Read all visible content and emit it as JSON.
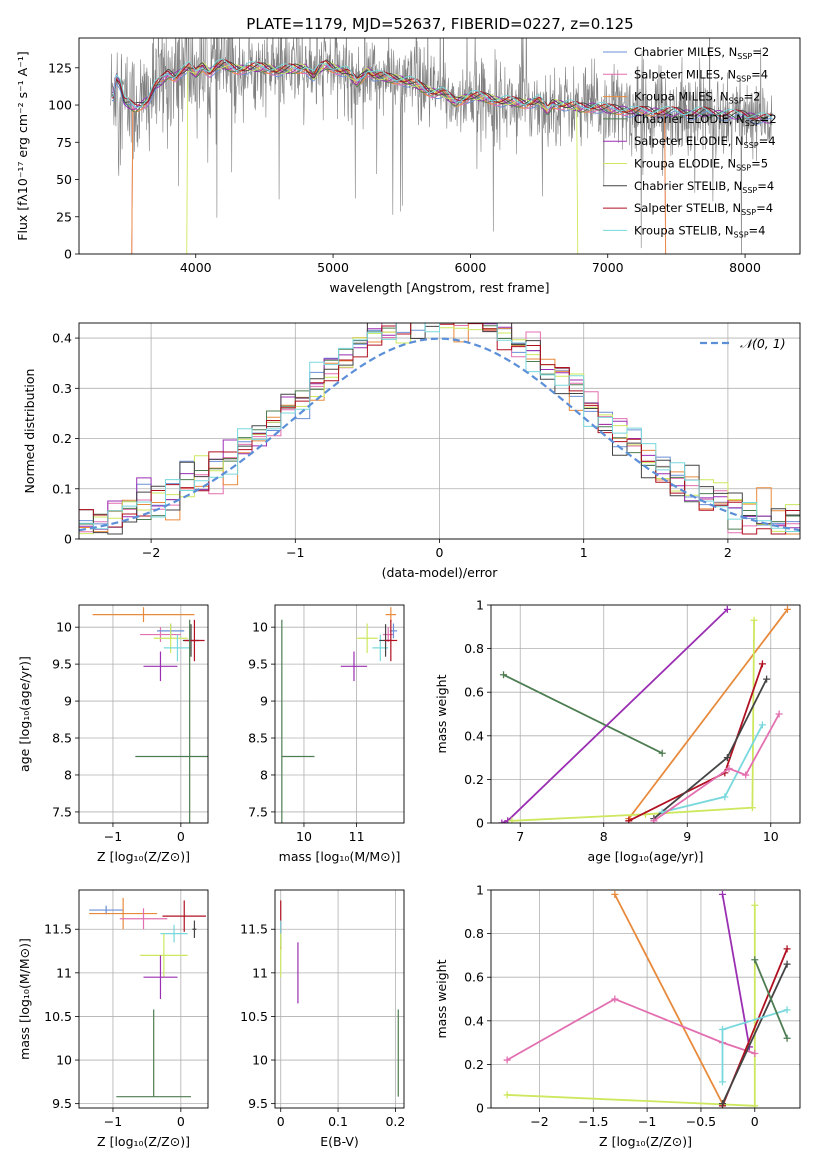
{
  "figure_title": "PLATE=1179, MJD=52637, FIBERID=0227, z=0.125",
  "series_colors": {
    "chabrier_miles": "#6a8fd6",
    "salpeter_miles": "#e36fb0",
    "kroupa_miles": "#e88a3c",
    "chabrier_elodie": "#4e7d52",
    "salpeter_elodie": "#9b2fb3",
    "kroupa_elodie": "#cde85e",
    "chabrier_stelib": "#444444",
    "salpeter_stelib": "#b01020",
    "kroupa_stelib": "#78d8dc",
    "data": "#808080",
    "normal": "#5b8fd8"
  },
  "chart_data": [
    {
      "id": "spectrum",
      "type": "line",
      "xlabel": "wavelength [Angstrom, rest frame]",
      "ylabel": "Flux [fλ10⁻¹⁷ erg cm⁻² s⁻¹ A⁻¹]",
      "xlim": [
        3150,
        8400
      ],
      "ylim": [
        0,
        145
      ],
      "xticks": [
        4000,
        5000,
        6000,
        7000,
        8000
      ],
      "yticks": [
        0,
        25,
        50,
        75,
        100,
        125
      ],
      "grid": false,
      "legend_position": "top-right",
      "legend": [
        {
          "label": "Chabrier MILES, N",
          "sub": "SSP",
          "tail": "=2",
          "color_key": "chabrier_miles"
        },
        {
          "label": "Salpeter MILES, N",
          "sub": "SSP",
          "tail": "=4",
          "color_key": "salpeter_miles"
        },
        {
          "label": "Kroupa MILES, N",
          "sub": "SSP",
          "tail": "=2",
          "color_key": "kroupa_miles"
        },
        {
          "label": "Chabrier ELODIE, N",
          "sub": "SSP",
          "tail": "=2",
          "color_key": "chabrier_elodie"
        },
        {
          "label": "Salpeter ELODIE, N",
          "sub": "SSP",
          "tail": "=4",
          "color_key": "salpeter_elodie"
        },
        {
          "label": "Kroupa ELODIE, N",
          "sub": "SSP",
          "tail": "=5",
          "color_key": "kroupa_elodie"
        },
        {
          "label": "Chabrier STELIB, N",
          "sub": "SSP",
          "tail": "=4",
          "color_key": "chabrier_stelib"
        },
        {
          "label": "Salpeter STELIB, N",
          "sub": "SSP",
          "tail": "=4",
          "color_key": "salpeter_stelib"
        },
        {
          "label": "Kroupa STELIB, N",
          "sub": "SSP",
          "tail": "=4",
          "color_key": "kroupa_stelib"
        }
      ],
      "model_continuum": {
        "x": [
          3400,
          3420,
          3450,
          3480,
          3520,
          3560,
          3600,
          3650,
          3700,
          3750,
          3800,
          3850,
          3900,
          3950,
          4000,
          4050,
          4100,
          4150,
          4200,
          4300,
          4400,
          4500,
          4600,
          4700,
          4800,
          4860,
          4900,
          4950,
          5000,
          5100,
          5175,
          5250,
          5300,
          5400,
          5500,
          5600,
          5700,
          5800,
          5890,
          6000,
          6100,
          6200,
          6300,
          6400,
          6500,
          6563,
          6600,
          6700,
          6800,
          6900,
          7000,
          7100,
          7200,
          7300,
          7400,
          7500,
          7600,
          7700,
          7800,
          7900,
          8000,
          8100,
          8200
        ],
        "y": [
          106,
          119,
          114,
          102,
          100,
          98,
          100,
          103,
          112,
          116,
          121,
          119,
          123,
          125,
          121,
          126,
          122,
          126,
          127,
          124,
          125,
          125,
          123,
          124,
          125,
          119,
          124,
          127,
          125,
          122,
          115,
          123,
          120,
          118,
          117,
          114,
          109,
          108,
          102,
          106,
          105,
          103,
          102,
          101,
          103,
          96,
          101,
          100,
          98,
          99,
          97,
          97,
          95,
          96,
          95,
          95,
          94,
          95,
          94,
          93,
          93,
          91,
          90
        ]
      },
      "data_noise_amplitude": 35
    },
    {
      "id": "residuals",
      "type": "histogram",
      "xlabel": "(data-model)/error",
      "ylabel": "Normed distribution",
      "xlim": [
        -2.5,
        2.5
      ],
      "ylim": [
        0,
        0.43
      ],
      "xticks": [
        -2,
        -1,
        0,
        1,
        2
      ],
      "yticks": [
        0.0,
        0.1,
        0.2,
        0.3,
        0.4
      ],
      "grid": true,
      "legend_position": "top-right",
      "normal_label": "𝒩(0, 1)",
      "bin_width": 0.1
    },
    {
      "id": "age_vs_Z",
      "type": "errorbar",
      "xlabel": "Z [log₁₀(Z/Z⊙)]",
      "ylabel": "age  [log₁₀(age/yr)]",
      "xlim": [
        -1.5,
        0.4
      ],
      "ylim": [
        7.35,
        10.3
      ],
      "xticks": [
        -1,
        0
      ],
      "yticks": [
        7.5,
        8.0,
        8.5,
        9.0,
        9.5,
        10.0
      ],
      "grid": true,
      "points": [
        {
          "color_key": "kroupa_miles",
          "x": -0.55,
          "xerr": 0.75,
          "y": 10.17,
          "yerr": 0.1
        },
        {
          "color_key": "salpeter_miles",
          "x": -0.3,
          "xerr": 0.3,
          "y": 9.9,
          "yerr": 0.1
        },
        {
          "color_key": "chabrier_miles",
          "x": -0.15,
          "xerr": 0.2,
          "y": 9.95,
          "yerr": 0.1
        },
        {
          "color_key": "salpeter_elodie",
          "x": -0.3,
          "xerr": 0.25,
          "y": 9.47,
          "yerr": 0.2
        },
        {
          "color_key": "kroupa_elodie",
          "x": -0.15,
          "xerr": 0.25,
          "y": 9.85,
          "yerr": 0.2
        },
        {
          "color_key": "kroupa_stelib",
          "x": -0.05,
          "xerr": 0.2,
          "y": 9.72,
          "yerr": 0.18
        },
        {
          "color_key": "chabrier_stelib",
          "x": 0.15,
          "xerr": 0.12,
          "y": 9.82,
          "yerr": 0.22
        },
        {
          "color_key": "salpeter_stelib",
          "x": 0.2,
          "xerr": 0.15,
          "y": 9.82,
          "yerr": 0.28
        },
        {
          "color_key": "chabrier_elodie",
          "x": 0.13,
          "xerr": 0.8,
          "y": 8.25,
          "yerr": 1.85
        }
      ]
    },
    {
      "id": "age_vs_mass",
      "type": "errorbar",
      "xlabel": "mass [log₁₀(M/M⊙)]",
      "ylabel": "",
      "xlim": [
        9.45,
        11.9
      ],
      "ylim": [
        7.35,
        10.3
      ],
      "xticks": [
        10,
        11
      ],
      "yticks": [
        7.5,
        8.0,
        8.5,
        9.0,
        9.5,
        10.0
      ],
      "grid": true,
      "points": [
        {
          "color_key": "kroupa_miles",
          "x": 11.65,
          "xerr": 0.1,
          "y": 10.17,
          "yerr": 0.1
        },
        {
          "color_key": "salpeter_miles",
          "x": 11.6,
          "xerr": 0.1,
          "y": 9.9,
          "yerr": 0.1
        },
        {
          "color_key": "chabrier_miles",
          "x": 11.7,
          "xerr": 0.07,
          "y": 9.95,
          "yerr": 0.1
        },
        {
          "color_key": "salpeter_elodie",
          "x": 10.95,
          "xerr": 0.25,
          "y": 9.47,
          "yerr": 0.2
        },
        {
          "color_key": "kroupa_elodie",
          "x": 11.2,
          "xerr": 0.2,
          "y": 9.85,
          "yerr": 0.2
        },
        {
          "color_key": "kroupa_stelib",
          "x": 11.45,
          "xerr": 0.15,
          "y": 9.72,
          "yerr": 0.18
        },
        {
          "color_key": "chabrier_stelib",
          "x": 11.55,
          "xerr": 0.12,
          "y": 9.82,
          "yerr": 0.22
        },
        {
          "color_key": "salpeter_stelib",
          "x": 11.65,
          "xerr": 0.12,
          "y": 9.82,
          "yerr": 0.28
        },
        {
          "color_key": "chabrier_elodie",
          "x": 9.58,
          "xerr": 0.0,
          "y": 8.25,
          "yerr": 1.85,
          "xhi": 10.2
        }
      ]
    },
    {
      "id": "weight_vs_age",
      "type": "line",
      "xlabel": "age  [log₁₀(age/yr)]",
      "ylabel": "mass weight",
      "xlim": [
        6.65,
        10.35
      ],
      "ylim": [
        0,
        1
      ],
      "xticks": [
        7,
        8,
        9,
        10
      ],
      "yticks": [
        0.0,
        0.2,
        0.4,
        0.6,
        0.8,
        1.0
      ],
      "grid": true,
      "series": [
        {
          "color_key": "chabrier_elodie",
          "x": [
            6.8,
            8.7
          ],
          "y": [
            0.68,
            0.32
          ]
        },
        {
          "color_key": "salpeter_elodie",
          "x": [
            6.78,
            6.85,
            9.48
          ],
          "y": [
            0.0,
            0.01,
            0.98
          ]
        },
        {
          "color_key": "kroupa_miles",
          "x": [
            8.3,
            10.2
          ],
          "y": [
            0.02,
            0.98
          ]
        },
        {
          "color_key": "kroupa_elodie",
          "x": [
            6.9,
            8.5,
            9.78,
            9.8
          ],
          "y": [
            0.01,
            0.04,
            0.07,
            0.93
          ]
        },
        {
          "color_key": "salpeter_stelib",
          "x": [
            8.3,
            9.45,
            9.9
          ],
          "y": [
            0.01,
            0.23,
            0.73
          ]
        },
        {
          "color_key": "chabrier_stelib",
          "x": [
            8.6,
            9.48,
            9.95
          ],
          "y": [
            0.02,
            0.3,
            0.66
          ]
        },
        {
          "color_key": "kroupa_stelib",
          "x": [
            8.7,
            9.45,
            9.9
          ],
          "y": [
            0.05,
            0.12,
            0.45
          ]
        },
        {
          "color_key": "salpeter_miles",
          "x": [
            8.6,
            9.5,
            9.7,
            10.1
          ],
          "y": [
            0.01,
            0.25,
            0.22,
            0.5
          ]
        }
      ]
    },
    {
      "id": "mass_vs_Z",
      "type": "errorbar",
      "xlabel": "Z [log₁₀(Z/Z⊙)]",
      "ylabel": "mass [log₁₀(M/M⊙)]",
      "xlim": [
        -1.5,
        0.4
      ],
      "ylim": [
        9.45,
        11.95
      ],
      "xticks": [
        -1,
        0
      ],
      "yticks": [
        9.5,
        10.0,
        10.5,
        11.0,
        11.5
      ],
      "grid": true,
      "points": [
        {
          "color_key": "chabrier_miles",
          "x": -1.1,
          "xerr": 0.25,
          "y": 11.72,
          "yerr": 0.05
        },
        {
          "color_key": "kroupa_miles",
          "x": -0.85,
          "xerr": 0.5,
          "y": 11.68,
          "yerr": 0.18
        },
        {
          "color_key": "salpeter_miles",
          "x": -0.55,
          "xerr": 0.35,
          "y": 11.62,
          "yerr": 0.12
        },
        {
          "color_key": "salpeter_stelib",
          "x": 0.05,
          "xerr": 0.32,
          "y": 11.65,
          "yerr": 0.18
        },
        {
          "color_key": "chabrier_stelib",
          "x": 0.2,
          "xerr": 0.03,
          "y": 11.5,
          "yerr": 0.1
        },
        {
          "color_key": "kroupa_stelib",
          "x": -0.1,
          "xerr": 0.2,
          "y": 11.45,
          "yerr": 0.1
        },
        {
          "color_key": "kroupa_elodie",
          "x": -0.25,
          "xerr": 0.35,
          "y": 11.2,
          "yerr": 0.25
        },
        {
          "color_key": "salpeter_elodie",
          "x": -0.3,
          "xerr": 0.25,
          "y": 10.95,
          "yerr": 0.25
        },
        {
          "color_key": "chabrier_elodie",
          "x": -0.4,
          "xerr": 0.55,
          "y": 9.58,
          "yerr": 0.0,
          "yhi": 10.58
        }
      ]
    },
    {
      "id": "mass_vs_EBV",
      "type": "errorbar",
      "xlabel": "E(B-V)",
      "ylabel": "",
      "xlim": [
        -0.01,
        0.215
      ],
      "ylim": [
        9.45,
        11.95
      ],
      "xticks": [
        0.0,
        0.1,
        0.2
      ],
      "yticks": [
        9.5,
        10.0,
        10.5,
        11.0,
        11.5
      ],
      "grid": true,
      "points": [
        {
          "color_key": "salpeter_stelib",
          "x": 0.0,
          "xerr": 0.0,
          "y": 11.55,
          "yerr": 0.28
        },
        {
          "color_key": "kroupa_stelib",
          "x": 0.0,
          "xerr": 0.0,
          "y": 11.45,
          "yerr": 0.15
        },
        {
          "color_key": "kroupa_elodie",
          "x": 0.0,
          "xerr": 0.0,
          "y": 11.2,
          "yerr": 0.25
        },
        {
          "color_key": "salpeter_elodie",
          "x": 0.03,
          "xerr": 0.0,
          "y": 11.0,
          "yerr": 0.35
        },
        {
          "color_key": "chabrier_elodie",
          "x": 0.205,
          "xerr": 0.0,
          "y": 10.08,
          "yerr": 0.5
        }
      ]
    },
    {
      "id": "weight_vs_Z",
      "type": "line",
      "xlabel": "Z [log₁₀(Z/Z⊙)]",
      "ylabel": "mass weight",
      "xlim": [
        -2.45,
        0.42
      ],
      "ylim": [
        0,
        1
      ],
      "xticks": [
        -2.0,
        -1.5,
        -1.0,
        -0.5,
        0.0
      ],
      "yticks": [
        0.0,
        0.2,
        0.4,
        0.6,
        0.8,
        1.0
      ],
      "grid": true,
      "series": [
        {
          "color_key": "kroupa_miles",
          "x": [
            -1.3,
            -0.3
          ],
          "y": [
            0.98,
            0.02
          ]
        },
        {
          "color_key": "salpeter_elodie",
          "x": [
            -0.3,
            -0.05
          ],
          "y": [
            0.98,
            0.28
          ]
        },
        {
          "color_key": "kroupa_elodie",
          "x": [
            -2.3,
            0.0,
            0.0
          ],
          "y": [
            0.06,
            0.01,
            0.93
          ]
        },
        {
          "color_key": "salpeter_miles",
          "x": [
            -2.3,
            -1.3,
            -0.3,
            0.0
          ],
          "y": [
            0.22,
            0.5,
            0.3,
            0.25
          ]
        },
        {
          "color_key": "salpeter_stelib",
          "x": [
            -0.3,
            0.3
          ],
          "y": [
            0.01,
            0.73
          ]
        },
        {
          "color_key": "chabrier_stelib",
          "x": [
            -0.3,
            0.3
          ],
          "y": [
            0.02,
            0.66
          ]
        },
        {
          "color_key": "kroupa_stelib",
          "x": [
            -0.3,
            -0.3,
            0.3
          ],
          "y": [
            0.12,
            0.36,
            0.45
          ]
        },
        {
          "color_key": "chabrier_elodie",
          "x": [
            0.0,
            0.3
          ],
          "y": [
            0.68,
            0.32
          ]
        }
      ]
    }
  ]
}
